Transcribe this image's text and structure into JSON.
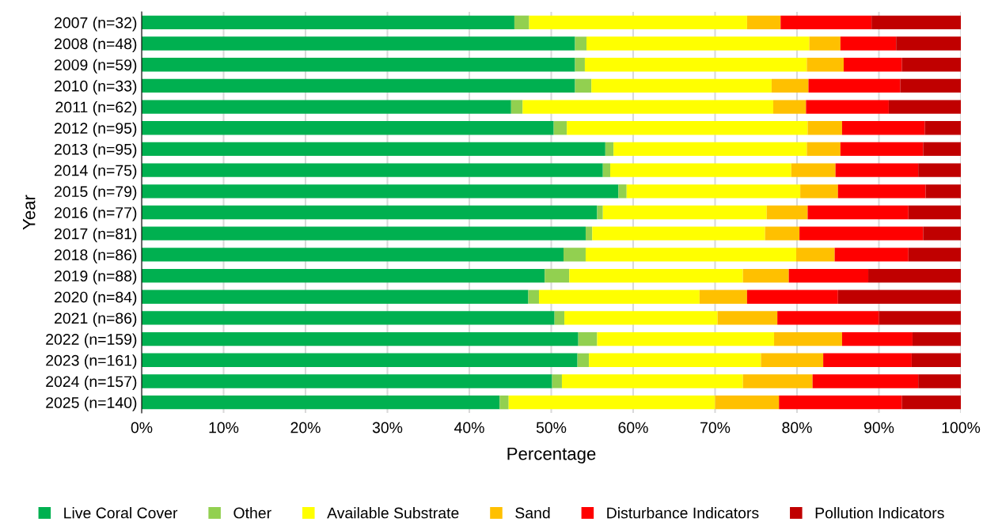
{
  "chart_data": {
    "type": "bar",
    "orientation": "horizontal",
    "stacked": true,
    "xlabel": "Percentage",
    "ylabel": "Year",
    "categories": [
      "2007 (n=32)",
      "2008 (n=48)",
      "2009 (n=59)",
      "2010 (n=33)",
      "2011 (n=62)",
      "2012 (n=95)",
      "2013 (n=95)",
      "2014 (n=75)",
      "2015 (n=79)",
      "2016 (n=77)",
      "2017 (n=81)",
      "2018 (n=86)",
      "2019 (n=88)",
      "2020 (n=84)",
      "2021 (n=86)",
      "2022 (n=159)",
      "2023 (n=161)",
      "2024 (n=157)",
      "2025 (n=140)"
    ],
    "series": [
      {
        "name": "Live Coral Cover",
        "color": "#00b050",
        "values": [
          45.5,
          52.9,
          52.9,
          52.9,
          45.1,
          50.3,
          56.6,
          56.3,
          58.2,
          55.6,
          54.2,
          51.5,
          49.2,
          47.2,
          50.4,
          53.3,
          53.2,
          50.1,
          43.7
        ]
      },
      {
        "name": "Other",
        "color": "#92d050",
        "values": [
          1.8,
          1.4,
          1.2,
          2.0,
          1.4,
          1.6,
          1.0,
          0.9,
          1.0,
          0.7,
          0.8,
          2.7,
          3.0,
          1.3,
          1.2,
          2.3,
          1.4,
          1.2,
          1.1
        ]
      },
      {
        "name": "Available Substrate",
        "color": "#ffff00",
        "values": [
          26.6,
          27.2,
          27.1,
          22.0,
          30.6,
          29.4,
          23.6,
          22.1,
          21.2,
          20.0,
          21.1,
          25.7,
          21.2,
          19.6,
          18.7,
          21.6,
          21.0,
          22.1,
          25.2
        ]
      },
      {
        "name": "Sand",
        "color": "#ffc000",
        "values": [
          4.1,
          3.8,
          4.5,
          4.5,
          4.0,
          4.2,
          4.1,
          5.4,
          4.6,
          5.0,
          4.2,
          4.7,
          5.6,
          5.8,
          7.3,
          8.3,
          7.6,
          8.5,
          7.8
        ]
      },
      {
        "name": "Disturbance Indicators",
        "color": "#ff0000",
        "values": [
          11.1,
          6.8,
          7.1,
          11.2,
          10.1,
          10.1,
          10.1,
          10.1,
          10.7,
          12.3,
          15.1,
          9.0,
          9.7,
          11.1,
          12.4,
          8.6,
          10.8,
          12.9,
          15.0
        ]
      },
      {
        "name": "Pollution Indicators",
        "color": "#c00000",
        "values": [
          10.9,
          7.9,
          7.2,
          7.4,
          8.8,
          4.4,
          4.6,
          5.2,
          4.3,
          6.4,
          4.6,
          6.4,
          11.3,
          15.0,
          10.0,
          5.9,
          6.0,
          5.2,
          7.2
        ]
      }
    ],
    "xlim": [
      0,
      100
    ],
    "xticks": [
      {
        "value": 0,
        "label": "0%"
      },
      {
        "value": 10,
        "label": "10%"
      },
      {
        "value": 20,
        "label": "20%"
      },
      {
        "value": 30,
        "label": "30%"
      },
      {
        "value": 40,
        "label": "40%"
      },
      {
        "value": 50,
        "label": "50%"
      },
      {
        "value": 60,
        "label": "60%"
      },
      {
        "value": 70,
        "label": "70%"
      },
      {
        "value": 80,
        "label": "80%"
      },
      {
        "value": 90,
        "label": "90%"
      },
      {
        "value": 100,
        "label": "100%"
      }
    ],
    "grid": "x",
    "legend": "bottom"
  }
}
